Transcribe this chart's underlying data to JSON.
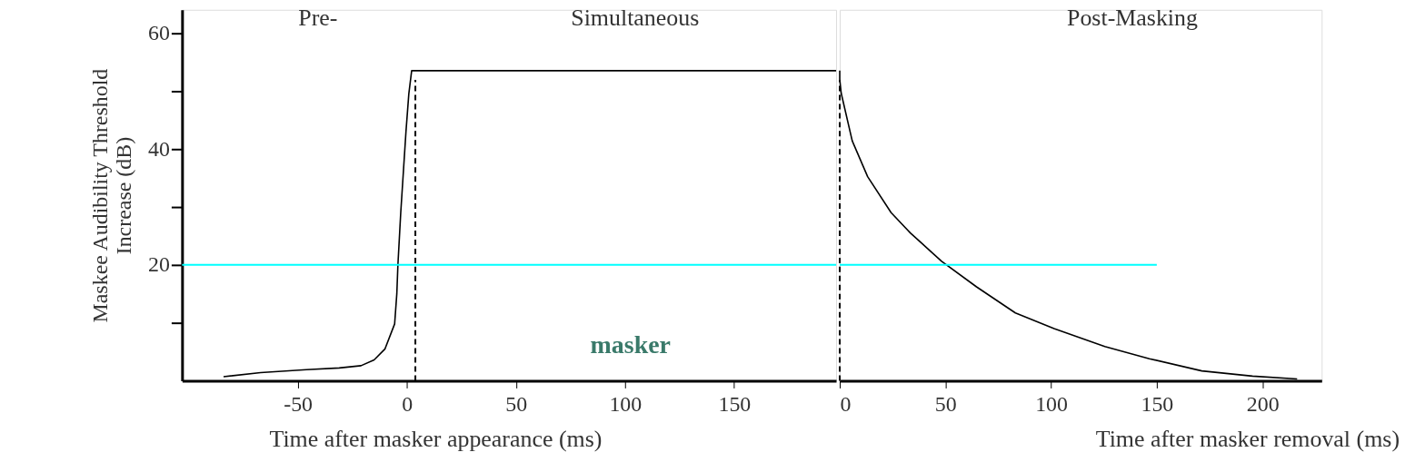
{
  "chart_data": [
    {
      "type": "line",
      "ylabel": "Maskee Audibility Threshold Increase (dB)",
      "xlabel": "Time after masker appearance (ms)",
      "series": [
        {
          "color": "#000000",
          "x": [
            -84,
            -67,
            -46,
            -31,
            -21,
            -15,
            -10,
            -5.6,
            -4.6,
            -4.1,
            -2.8,
            -1.5,
            -0.4,
            0.9,
            2.2,
            196.7
          ],
          "values": [
            0.7,
            1.4,
            1.9,
            2.2,
            2.6,
            3.6,
            5.5,
            9.8,
            15,
            20,
            29,
            36.6,
            43,
            49.5,
            53.5,
            53.5
          ]
        },
        {
          "color": "#00ffff",
          "x": [
            -103,
            196.7
          ],
          "values": [
            20,
            20
          ]
        }
      ],
      "ref_lines": [
        {
          "axis": "x",
          "value": 3.9,
          "color": "#000000",
          "line_style": "dashed"
        }
      ],
      "xlim": [
        -103,
        196.7
      ],
      "xticks": [
        -50,
        0,
        50,
        100,
        150
      ],
      "ylim": [
        0,
        64
      ],
      "yticks": [
        {
          "value": 10,
          "label": null
        },
        20,
        {
          "value": 30,
          "label": null
        },
        40,
        {
          "value": 50,
          "label": null
        },
        60
      ],
      "annotations": [
        "Pre-",
        "Simultaneous",
        "masker"
      ],
      "grid": false,
      "line_style": "solid",
      "marker": "none"
    },
    {
      "type": "line",
      "xlabel": "Time after masker removal (ms)",
      "series": [
        {
          "color": "#000000",
          "x": [
            0,
            0,
            0.7,
            5.9,
            13.2,
            24.3,
            33.4,
            48.2,
            64.7,
            83.1,
            101.4,
            125.4,
            146.5,
            171.3,
            195.3,
            216.4
          ],
          "values": [
            53.5,
            52,
            49.6,
            41.4,
            35.2,
            29,
            25.5,
            20.6,
            16.2,
            11.7,
            9,
            5.9,
            3.8,
            1.7,
            0.8,
            0.3
          ]
        },
        {
          "color": "#00ffff",
          "x": [
            0,
            150
          ],
          "values": [
            20,
            20
          ]
        }
      ],
      "ref_lines": [
        {
          "axis": "x",
          "value": 0,
          "color": "#000000",
          "line_style": "dashed"
        }
      ],
      "xlim": [
        0,
        228
      ],
      "xticks": [
        0,
        50,
        100,
        150,
        200
      ],
      "ylim": [
        0,
        64
      ],
      "tick_labels": "x",
      "annotations": [
        "Post-Masking"
      ],
      "grid": false,
      "line_style": "solid",
      "marker": "none"
    }
  ]
}
